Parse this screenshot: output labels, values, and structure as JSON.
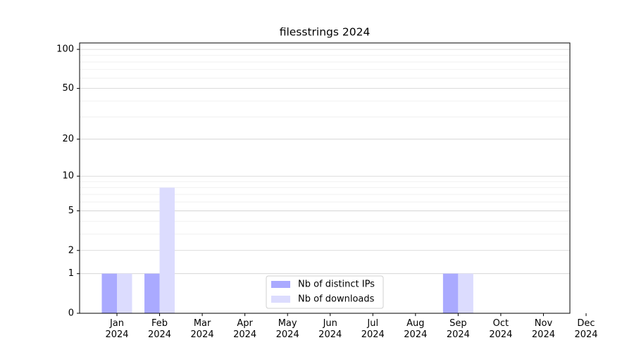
{
  "chart_data": {
    "type": "bar",
    "title": "filesstrings 2024",
    "categories": [
      "Jan 2024",
      "Feb 2024",
      "Mar 2024",
      "Apr 2024",
      "May 2024",
      "Jun 2024",
      "Jul 2024",
      "Aug 2024",
      "Sep 2024",
      "Oct 2024",
      "Nov 2024",
      "Dec 2024"
    ],
    "series": [
      {
        "name": "Nb of distinct IPs",
        "color": "#aaaaff",
        "values": [
          1,
          1,
          0,
          0,
          0,
          0,
          0,
          0,
          1,
          0,
          0,
          0
        ]
      },
      {
        "name": "Nb of downloads",
        "color": "#dcdcfe",
        "values": [
          1,
          8,
          0,
          0,
          0,
          0,
          0,
          0,
          1,
          0,
          0,
          0
        ]
      }
    ],
    "y_scale": "log1p",
    "ylim": [
      0,
      112
    ],
    "yticks": [
      0,
      1,
      2,
      5,
      10,
      20,
      50,
      100
    ],
    "minor_yticks": [
      3,
      4,
      6,
      7,
      8,
      9,
      30,
      40,
      60,
      70,
      80,
      90
    ],
    "grid": true,
    "legend_position": "lower center"
  }
}
